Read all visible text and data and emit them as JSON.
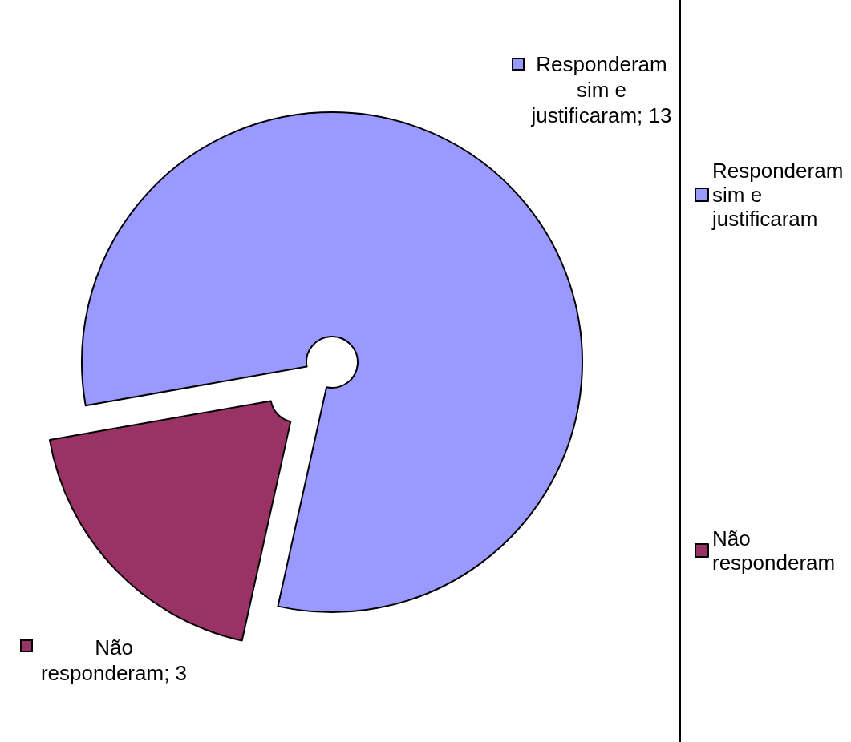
{
  "chart_data": {
    "type": "pie",
    "categories": [
      "Responderam sim e justificaram",
      "Não responderam"
    ],
    "values": [
      13,
      3
    ],
    "colors": [
      "#9999ff",
      "#993366"
    ],
    "value_labels": [
      "Responderam sim e justificaram; 13",
      "Não responderam; 3"
    ],
    "legend": "right"
  }
}
